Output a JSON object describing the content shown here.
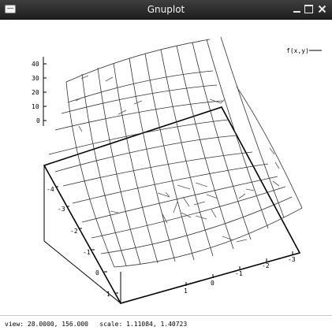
{
  "window": {
    "title": "Gnuplot"
  },
  "plot": {
    "legend_label": "f(x,y)",
    "z_ticks": [
      "40",
      "30",
      "20",
      "10",
      "0"
    ],
    "y_ticks": [
      "-4",
      "-3",
      "-2",
      "-1",
      "0",
      "1"
    ],
    "x_ticks": [
      "1",
      "0",
      "-1",
      "-2",
      "-3"
    ]
  },
  "status": {
    "text": "view: 28.0000, 156.000   scale: 1.11084, 1.40723"
  }
}
